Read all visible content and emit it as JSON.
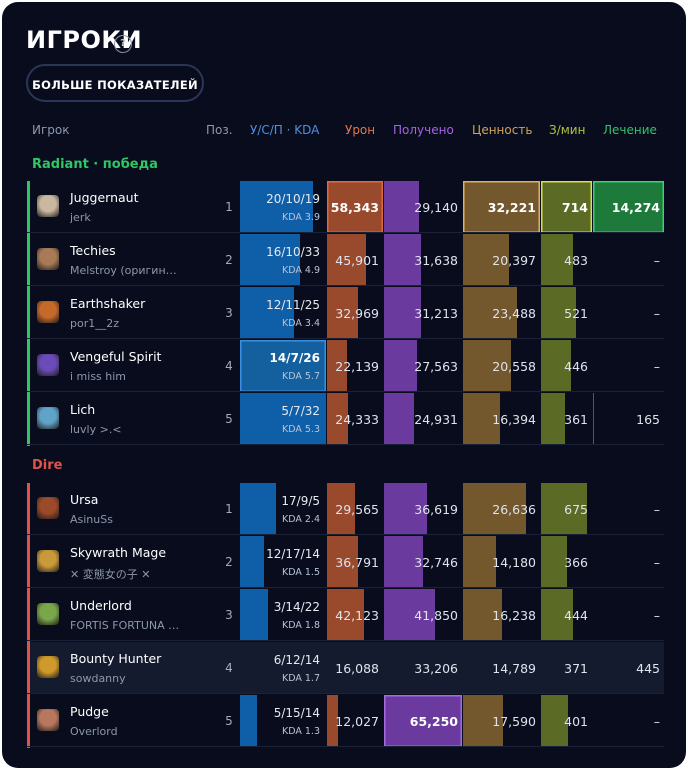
{
  "header": {
    "title": "ИГРОКИ",
    "help": "?",
    "more_button": "БОЛЬШЕ ПОКАЗАТЕЛЕЙ"
  },
  "columns": {
    "player": "Игрок",
    "pos": "Поз.",
    "kda": "У/С/П · KDA",
    "damage": "Урон",
    "received": "Получено",
    "networth": "Ценность",
    "xpm": "З/мин",
    "heal": "Лечение"
  },
  "colors": {
    "radiant": "#2fc765",
    "dire": "#e2524b",
    "kda": "#0f5ea8",
    "damage": "#9a4a2c",
    "received": "#6b3a9e",
    "networth": "#72582c",
    "xpm": "#5b6a25",
    "heal": "#1d7a3a"
  },
  "radiant": {
    "label": "Radiant · победа",
    "players": [
      {
        "hero": "Juggernaut",
        "player": "jerk",
        "pos": "1",
        "kda": "20/10/19",
        "kda_ratio": "KDA 3.9",
        "kda_fill": 0.85,
        "damage": "58,343",
        "damage_fill": 1.0,
        "received": "29,140",
        "received_fill": 0.45,
        "networth": "32,221",
        "networth_fill": 1.0,
        "xpm": "714",
        "xpm_fill": 1.0,
        "heal": "14,274",
        "heal_fill": 1.0,
        "hl": {
          "damage": true,
          "networth": true,
          "xpm": true,
          "heal": true
        },
        "icon_color": "#c9b7a0"
      },
      {
        "hero": "Techies",
        "player": "Melstroy (оригин…",
        "pos": "2",
        "kda": "16/10/33",
        "kda_ratio": "KDA 4.9",
        "kda_fill": 0.7,
        "damage": "45,901",
        "damage_fill": 0.7,
        "received": "31,638",
        "received_fill": 0.48,
        "networth": "20,397",
        "networth_fill": 0.6,
        "xpm": "483",
        "xpm_fill": 0.63,
        "heal": "–",
        "heal_fill": 0,
        "icon_color": "#a87a58"
      },
      {
        "hero": "Earthshaker",
        "player": "por1__2z",
        "pos": "3",
        "kda": "12/11/25",
        "kda_ratio": "KDA 3.4",
        "kda_fill": 0.63,
        "damage": "32,969",
        "damage_fill": 0.55,
        "received": "31,213",
        "received_fill": 0.47,
        "networth": "23,488",
        "networth_fill": 0.7,
        "xpm": "521",
        "xpm_fill": 0.68,
        "heal": "–",
        "heal_fill": 0,
        "icon_color": "#c66a2a"
      },
      {
        "hero": "Vengeful Spirit",
        "player": "i miss him",
        "pos": "4",
        "kda": "14/7/26",
        "kda_ratio": "KDA 5.7",
        "kda_fill": 1.0,
        "damage": "22,139",
        "damage_fill": 0.35,
        "received": "27,563",
        "received_fill": 0.42,
        "networth": "20,558",
        "networth_fill": 0.62,
        "xpm": "446",
        "xpm_fill": 0.58,
        "heal": "–",
        "heal_fill": 0,
        "hl": {
          "kda": true
        },
        "icon_color": "#6a4bb8"
      },
      {
        "hero": "Lich",
        "player": "luvly >.<",
        "pos": "5",
        "kda": "5/7/32",
        "kda_ratio": "KDA 5.3",
        "kda_fill": 1.0,
        "damage": "24,333",
        "damage_fill": 0.37,
        "received": "24,931",
        "received_fill": 0.38,
        "networth": "16,394",
        "networth_fill": 0.48,
        "xpm": "361",
        "xpm_fill": 0.47,
        "heal": "165",
        "heal_fill": 0.01,
        "icon_color": "#5fa3c9"
      }
    ]
  },
  "dire": {
    "label": "Dire",
    "players": [
      {
        "hero": "Ursa",
        "player": "AsinuSs",
        "pos": "1",
        "kda": "17/9/5",
        "kda_ratio": "KDA 2.4",
        "kda_fill": 0.42,
        "damage": "29,565",
        "damage_fill": 0.5,
        "received": "36,619",
        "received_fill": 0.55,
        "networth": "26,636",
        "networth_fill": 0.82,
        "xpm": "675",
        "xpm_fill": 0.9,
        "heal": "–",
        "heal_fill": 0,
        "icon_color": "#9b4a2a"
      },
      {
        "hero": "Skywrath Mage",
        "player": "✕ 変態女の子 ✕",
        "pos": "2",
        "kda": "12/17/14",
        "kda_ratio": "KDA 1.5",
        "kda_fill": 0.28,
        "damage": "36,791",
        "damage_fill": 0.55,
        "received": "32,746",
        "received_fill": 0.5,
        "networth": "14,180",
        "networth_fill": 0.43,
        "xpm": "366",
        "xpm_fill": 0.5,
        "heal": "–",
        "heal_fill": 0,
        "icon_color": "#c99a3a"
      },
      {
        "hero": "Underlord",
        "player": "FORTIS FORTUNA …",
        "pos": "3",
        "kda": "3/14/22",
        "kda_ratio": "KDA 1.8",
        "kda_fill": 0.32,
        "damage": "42,123",
        "damage_fill": 0.66,
        "received": "41,850",
        "received_fill": 0.65,
        "networth": "16,238",
        "networth_fill": 0.5,
        "xpm": "444",
        "xpm_fill": 0.62,
        "heal": "–",
        "heal_fill": 0,
        "icon_color": "#7aa64a"
      },
      {
        "hero": "Bounty Hunter",
        "player": "sowdanny",
        "pos": "4",
        "kda": "6/12/14",
        "kda_ratio": "KDA 1.7",
        "kda_fill": 0.0,
        "damage": "16,088",
        "damage_fill": 0.0,
        "received": "33,206",
        "received_fill": 0.0,
        "networth": "14,789",
        "networth_fill": 0.0,
        "xpm": "371",
        "xpm_fill": 0.0,
        "heal": "445",
        "heal_fill": 0,
        "active": true,
        "icon_color": "#d09a2a"
      },
      {
        "hero": "Pudge",
        "player": "Overlord",
        "pos": "5",
        "kda": "5/15/14",
        "kda_ratio": "KDA 1.3",
        "kda_fill": 0.2,
        "damage": "12,027",
        "damage_fill": 0.2,
        "received": "65,250",
        "received_fill": 1.0,
        "networth": "17,590",
        "networth_fill": 0.52,
        "xpm": "401",
        "xpm_fill": 0.52,
        "heal": "–",
        "heal_fill": 0,
        "hl": {
          "received": true
        },
        "icon_color": "#b87860"
      }
    ]
  }
}
